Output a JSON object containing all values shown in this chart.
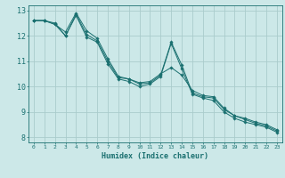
{
  "title": "",
  "xlabel": "Humidex (Indice chaleur)",
  "ylabel": "",
  "bg_color": "#cce8e8",
  "line_color": "#1a7070",
  "grid_color": "#aacccc",
  "xlim": [
    -0.5,
    23.5
  ],
  "ylim": [
    7.8,
    13.2
  ],
  "xticks": [
    0,
    1,
    2,
    3,
    4,
    5,
    6,
    7,
    8,
    9,
    10,
    11,
    12,
    13,
    14,
    15,
    16,
    17,
    18,
    19,
    20,
    21,
    22,
    23
  ],
  "yticks": [
    8,
    9,
    10,
    11,
    12,
    13
  ],
  "series": [
    [
      12.6,
      12.6,
      12.5,
      12.0,
      12.85,
      12.05,
      11.8,
      11.0,
      10.35,
      10.3,
      10.1,
      10.15,
      10.45,
      11.75,
      10.85,
      9.75,
      9.6,
      9.55,
      9.1,
      8.85,
      8.7,
      8.55,
      8.45,
      8.25
    ],
    [
      12.6,
      12.6,
      12.45,
      12.15,
      12.9,
      12.2,
      11.9,
      11.1,
      10.4,
      10.3,
      10.15,
      10.2,
      10.5,
      10.75,
      10.45,
      9.85,
      9.65,
      9.6,
      9.15,
      8.85,
      8.75,
      8.6,
      8.5,
      8.3
    ],
    [
      12.6,
      12.6,
      12.45,
      12.0,
      12.8,
      11.95,
      11.75,
      10.9,
      10.3,
      10.2,
      10.0,
      10.1,
      10.4,
      11.7,
      10.7,
      9.7,
      9.55,
      9.45,
      9.0,
      8.75,
      8.6,
      8.5,
      8.4,
      8.2
    ]
  ],
  "xlabel_fontsize": 6,
  "xtick_fontsize": 4.5,
  "ytick_fontsize": 6
}
